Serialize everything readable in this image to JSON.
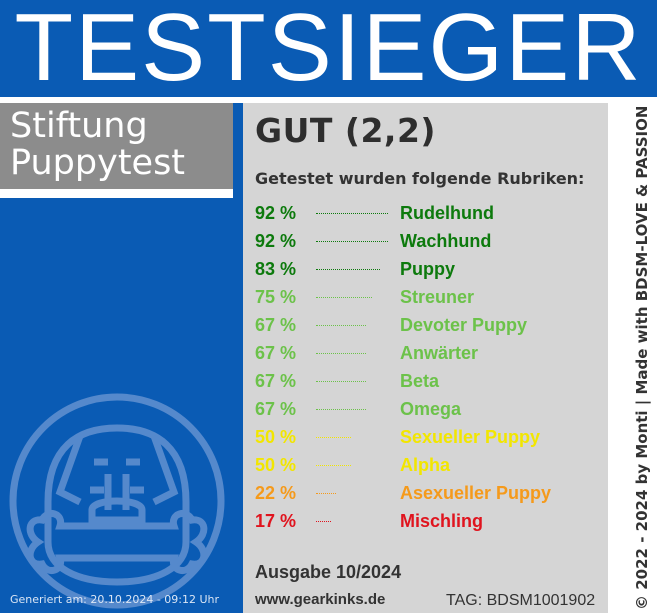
{
  "header": {
    "title": "TESTSIEGER"
  },
  "organization": {
    "line1": "Stiftung",
    "line2": "Puppytest"
  },
  "grade": "GUT (2,2)",
  "subhead": "Getestet wurden folgende Rubriken:",
  "rubrics": [
    {
      "percent": "92 %",
      "name": "Rudelhund",
      "color": "#0d7a0d",
      "dots": 72
    },
    {
      "percent": "92 %",
      "name": "Wachhund",
      "color": "#0d7a0d",
      "dots": 72
    },
    {
      "percent": "83 %",
      "name": "Puppy",
      "color": "#0d7a0d",
      "dots": 64
    },
    {
      "percent": "75 %",
      "name": "Streuner",
      "color": "#6cc24a",
      "dots": 56
    },
    {
      "percent": "67 %",
      "name": "Devoter Puppy",
      "color": "#6cc24a",
      "dots": 50
    },
    {
      "percent": "67 %",
      "name": "Anwärter",
      "color": "#6cc24a",
      "dots": 50
    },
    {
      "percent": "67 %",
      "name": "Beta",
      "color": "#6cc24a",
      "dots": 50
    },
    {
      "percent": "67 %",
      "name": "Omega",
      "color": "#6cc24a",
      "dots": 50
    },
    {
      "percent": "50 %",
      "name": "Sexueller Puppy",
      "color": "#f2e600",
      "dots": 35
    },
    {
      "percent": "50 %",
      "name": "Alpha",
      "color": "#f2e600",
      "dots": 35
    },
    {
      "percent": "22 %",
      "name": "Asexueller Puppy",
      "color": "#f59a1b",
      "dots": 20
    },
    {
      "percent": "17 %",
      "name": "Mischling",
      "color": "#e0141e",
      "dots": 15
    }
  ],
  "issue": "Ausgabe 10/2024",
  "website": "www.gearkinks.de",
  "tag": "TAG: BDSM1001902",
  "generated": "Generiert am: 20.10.2024 - 09:12 Uhr",
  "copyright": "© 2022 - 2024 by Monti | Made with BDSM-LOVE & PASSION",
  "colors": {
    "blue": "#0a5bb4",
    "grey": "#8c8c8c",
    "panel": "#d5d5d5"
  }
}
